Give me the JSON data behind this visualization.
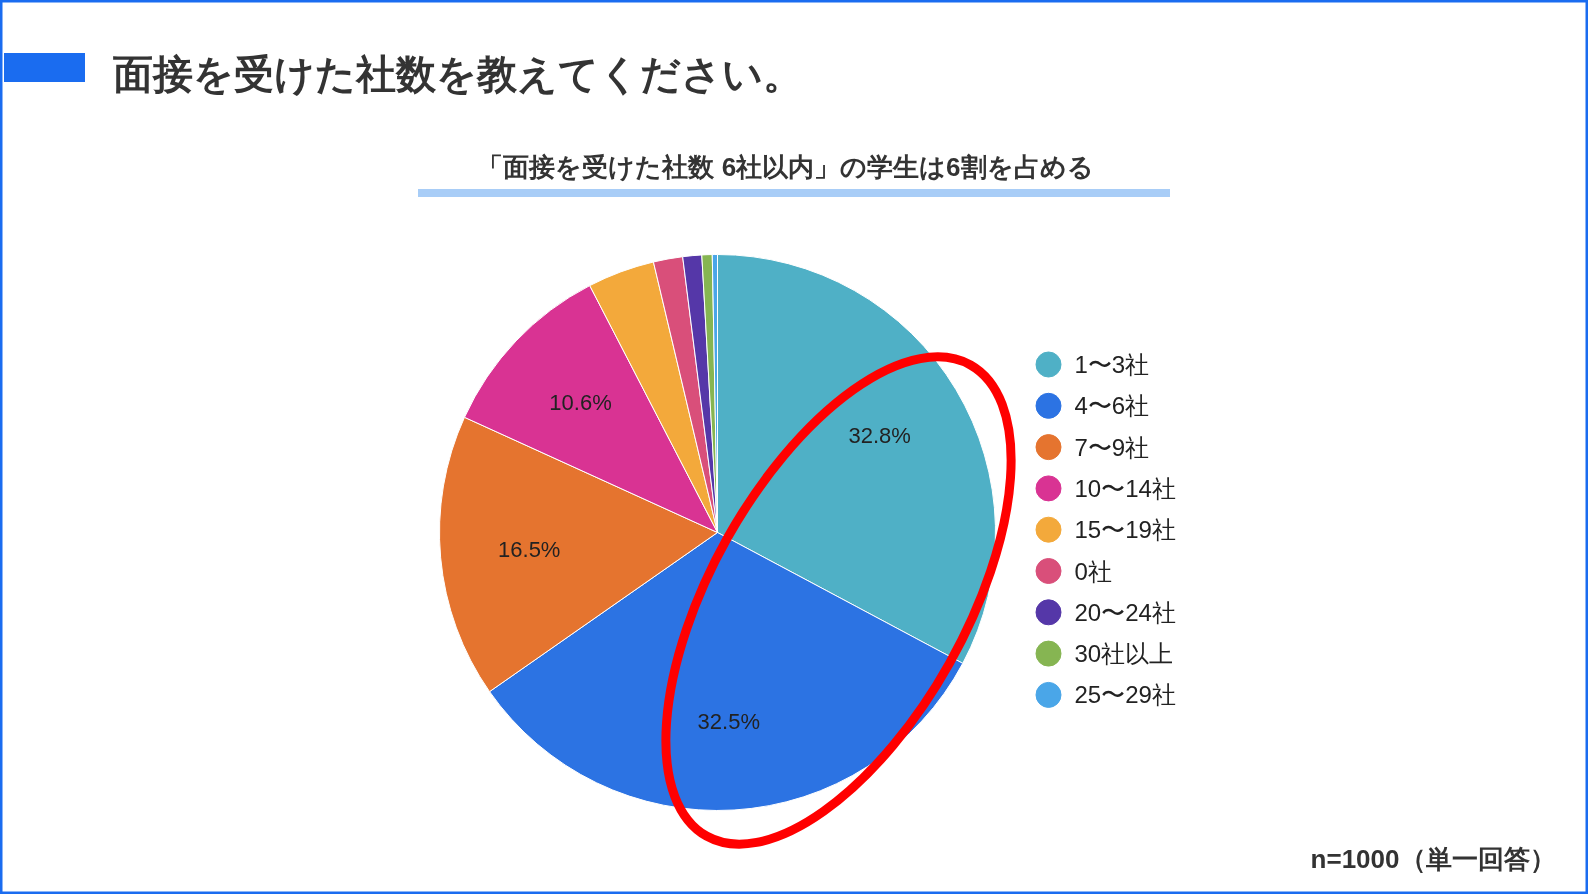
{
  "chart_data": {
    "type": "pie",
    "title": "面接を受けた社数を教えてください。",
    "subtitle": "「面接を受けた社数 6社以内」の学生は6割を占める",
    "categories": [
      "1〜3社",
      "4〜6社",
      "7〜9社",
      "10〜14社",
      "15〜19社",
      "0社",
      "20〜24社",
      "30社以上",
      "25〜29社"
    ],
    "values": [
      32.8,
      32.5,
      16.5,
      10.6,
      3.9,
      1.7,
      1.1,
      0.6,
      0.3
    ],
    "colors": [
      "#4fb0c6",
      "#2c73e3",
      "#e5742f",
      "#d93393",
      "#f3a93b",
      "#d94f7a",
      "#5537a8",
      "#86b552",
      "#4aa6e8"
    ],
    "value_labels": [
      "32.8%",
      "32.5%",
      "16.5%",
      "10.6%",
      null,
      null,
      null,
      null,
      null
    ],
    "legend": "right",
    "annotations": [
      "n=1000（単一回答）"
    ]
  }
}
